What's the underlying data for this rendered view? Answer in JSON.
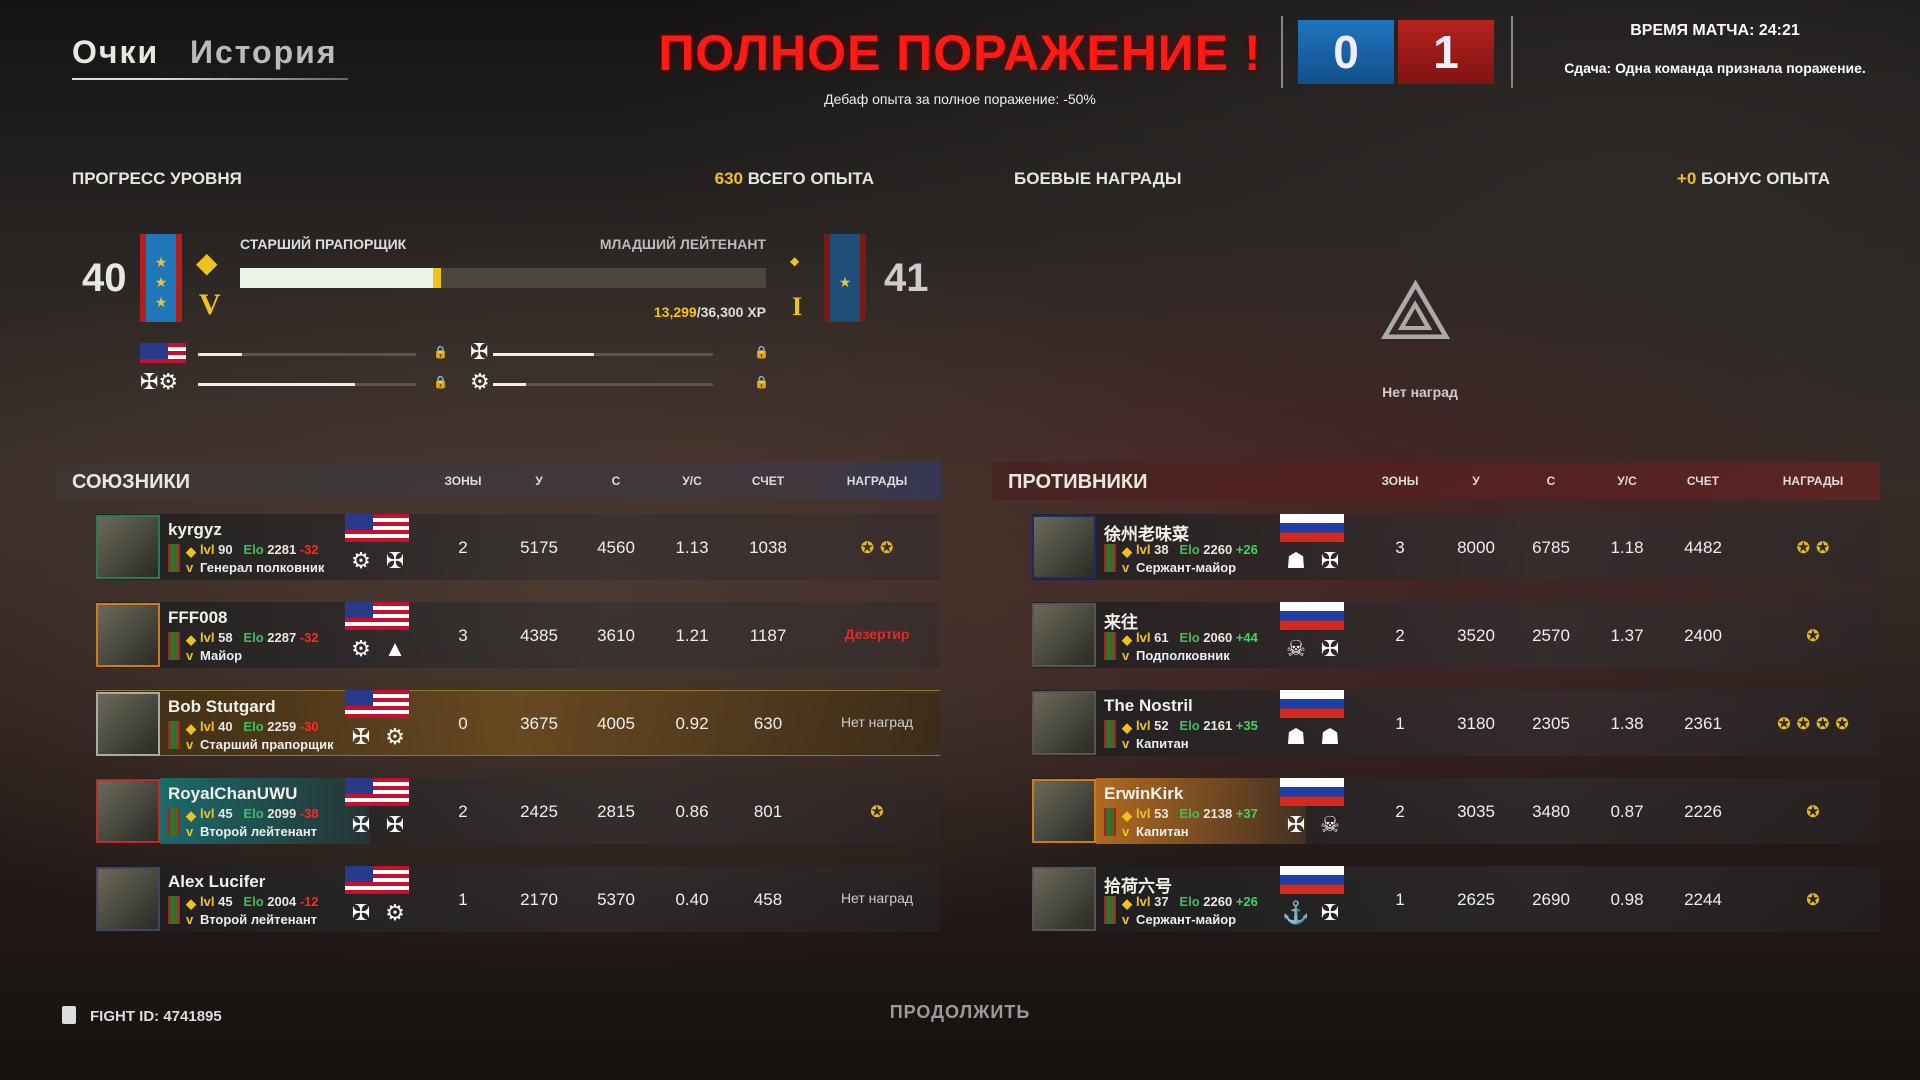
{
  "tabs": [
    {
      "label": "Очки",
      "active": true
    },
    {
      "label": "История",
      "active": false
    }
  ],
  "header": {
    "title": "ПОЛНОЕ ПОРАЖЕНИЕ !",
    "subtitle": "Дебаф опыта за полное поражение: -50%",
    "score_allies": "0",
    "score_enemies": "1",
    "match_time": "ВРЕМЯ МАТЧА: 24:21",
    "end_reason": "Сдача: Одна команда признала поражение."
  },
  "progress": {
    "title": "ПРОГРЕСС УРОВНЯ",
    "total_xp_value": "630",
    "total_xp_label": "ВСЕГО ОПЫТА",
    "level_current": "40",
    "level_next": "41",
    "rank_current": "СТАРШИЙ ПРАПОРЩИК",
    "rank_next": "МЛАДШИЙ ЛЕЙТЕНАНТ",
    "xp_current": "13,299",
    "xp_total": "/36,300 XP",
    "xp_fraction": 0.366,
    "faction_bars": [
      {
        "icon": "us-flag-icon",
        "fill": 0.2
      },
      {
        "icon": "paratrooper-icon",
        "fill": 0.46
      },
      {
        "icon": "class-icons",
        "fill": 0.72
      },
      {
        "icon": "marine-icon",
        "fill": 0.15
      }
    ]
  },
  "awards_panel": {
    "title": "БОЕВЫЕ НАГРАДЫ",
    "bonus_value": "+0",
    "bonus_label": "БОНУС ОПЫТА",
    "empty_text": "Нет наград"
  },
  "columns": [
    "ЗОНЫ",
    "У",
    "С",
    "У/С",
    "СЧЕТ",
    "НАГРАДЫ"
  ],
  "labels": {
    "lvl": "lvl",
    "elo": "Elo"
  },
  "allies": {
    "title": "СОЮЗНИКИ",
    "players": [
      {
        "name": "kyrgyz",
        "lvl": "90",
        "elo": "2281",
        "delta": "-32",
        "rank": "Генерал полковник",
        "zones": "2",
        "kills": "5175",
        "deaths": "4560",
        "kd": "1.13",
        "score": "1038",
        "awards_text": "",
        "award_count": 2
      },
      {
        "name": "FFF008",
        "lvl": "58",
        "elo": "2287",
        "delta": "-32",
        "rank": "Майор",
        "zones": "3",
        "kills": "4385",
        "deaths": "3610",
        "kd": "1.21",
        "score": "1187",
        "awards_text": "Дезертир",
        "award_count": 0
      },
      {
        "name": "Bob Stutgard",
        "lvl": "40",
        "elo": "2259",
        "delta": "-30",
        "rank": "Старший прапорщик",
        "zones": "0",
        "kills": "3675",
        "deaths": "4005",
        "kd": "0.92",
        "score": "630",
        "awards_text": "Нет наград",
        "award_count": 0,
        "highlight": true
      },
      {
        "name": "RoyalChanUWU",
        "lvl": "45",
        "elo": "2099",
        "delta": "-38",
        "rank": "Второй лейтенант",
        "zones": "2",
        "kills": "2425",
        "deaths": "2815",
        "kd": "0.86",
        "score": "801",
        "awards_text": "",
        "award_count": 1
      },
      {
        "name": "Alex Lucifer",
        "lvl": "45",
        "elo": "2004",
        "delta": "-12",
        "rank": "Второй лейтенант",
        "zones": "1",
        "kills": "2170",
        "deaths": "5370",
        "kd": "0.40",
        "score": "458",
        "awards_text": "Нет наград",
        "award_count": 0
      }
    ]
  },
  "enemies": {
    "title": "ПРОТИВНИКИ",
    "players": [
      {
        "name": "徐州老味菜",
        "lvl": "38",
        "elo": "2260",
        "delta": "+26",
        "rank": "Сержант-майор",
        "zones": "3",
        "kills": "8000",
        "deaths": "6785",
        "kd": "1.18",
        "score": "4482",
        "awards_text": "",
        "award_count": 2
      },
      {
        "name": "来往",
        "lvl": "61",
        "elo": "2060",
        "delta": "+44",
        "rank": "Подполковник",
        "zones": "2",
        "kills": "3520",
        "deaths": "2570",
        "kd": "1.37",
        "score": "2400",
        "awards_text": "",
        "award_count": 1
      },
      {
        "name": "The Nostril",
        "lvl": "52",
        "elo": "2161",
        "delta": "+35",
        "rank": "Капитан",
        "zones": "1",
        "kills": "3180",
        "deaths": "2305",
        "kd": "1.38",
        "score": "2361",
        "awards_text": "",
        "award_count": 4
      },
      {
        "name": "ErwinKirk",
        "lvl": "53",
        "elo": "2138",
        "delta": "+37",
        "rank": "Капитан",
        "zones": "2",
        "kills": "3035",
        "deaths": "3480",
        "kd": "0.87",
        "score": "2226",
        "awards_text": "",
        "award_count": 1
      },
      {
        "name": "拾荷六号",
        "lvl": "37",
        "elo": "2260",
        "delta": "+26",
        "rank": "Сержант-майор",
        "zones": "1",
        "kills": "2625",
        "deaths": "2690",
        "kd": "0.98",
        "score": "2244",
        "awards_text": "",
        "award_count": 1
      }
    ]
  },
  "footer": {
    "fight_id": "FIGHT ID: 4741895",
    "continue_label": "ПРОДОЛЖИТЬ"
  },
  "colors": {
    "defeat": "#ff1a14",
    "allies": "#1f66b0",
    "enemies": "#b01e1e",
    "xp": "#f2c21c",
    "elo": "#3fbf5a"
  }
}
